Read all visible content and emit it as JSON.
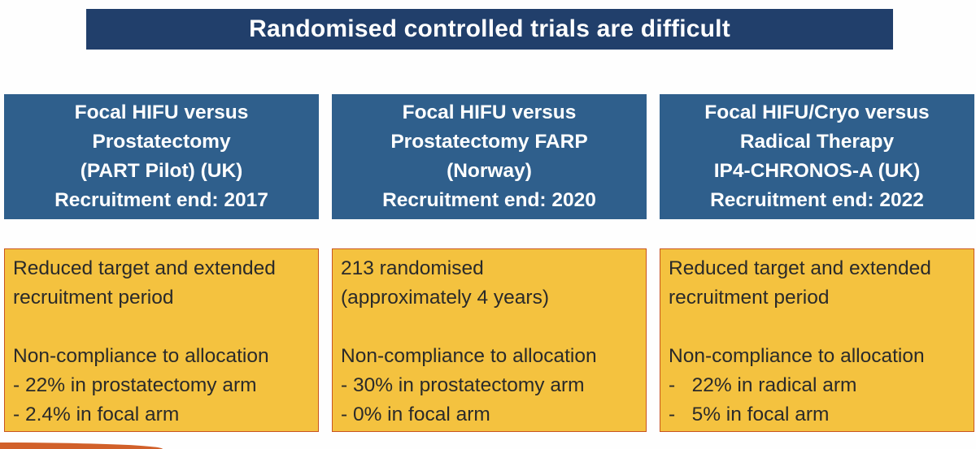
{
  "title": "Randomised controlled trials are difficult",
  "trials": [
    {
      "header": [
        "Focal HIFU versus",
        "Prostatectomy",
        "(PART Pilot) (UK)",
        "Recruitment end: 2017"
      ],
      "summary": [
        "Reduced target and extended",
        "recruitment period"
      ],
      "compliance_heading": "Non-compliance to allocation",
      "compliance_items": [
        "- 22% in prostatectomy arm",
        "- 2.4% in focal arm"
      ]
    },
    {
      "header": [
        "Focal HIFU versus",
        "Prostatectomy FARP",
        "(Norway)",
        "Recruitment end: 2020"
      ],
      "summary": [
        "213 randomised",
        "(approximately 4 years)"
      ],
      "compliance_heading": "Non-compliance to allocation",
      "compliance_items": [
        "- 30% in prostatectomy arm",
        "- 0% in focal arm"
      ]
    },
    {
      "header": [
        "Focal HIFU/Cryo versus",
        "Radical Therapy",
        "IP4-CHRONOS-A (UK)",
        "Recruitment end: 2022"
      ],
      "summary": [
        "Reduced target and extended",
        "recruitment period"
      ],
      "compliance_heading": "Non-compliance to allocation",
      "compliance_items": [
        "-   22% in radical arm",
        "-   5% in focal arm"
      ]
    }
  ],
  "colors": {
    "title_bg": "#213f6b",
    "header_bg": "#2f5f8c",
    "body_bg": "#f4c23f",
    "border": "#c8541f"
  }
}
